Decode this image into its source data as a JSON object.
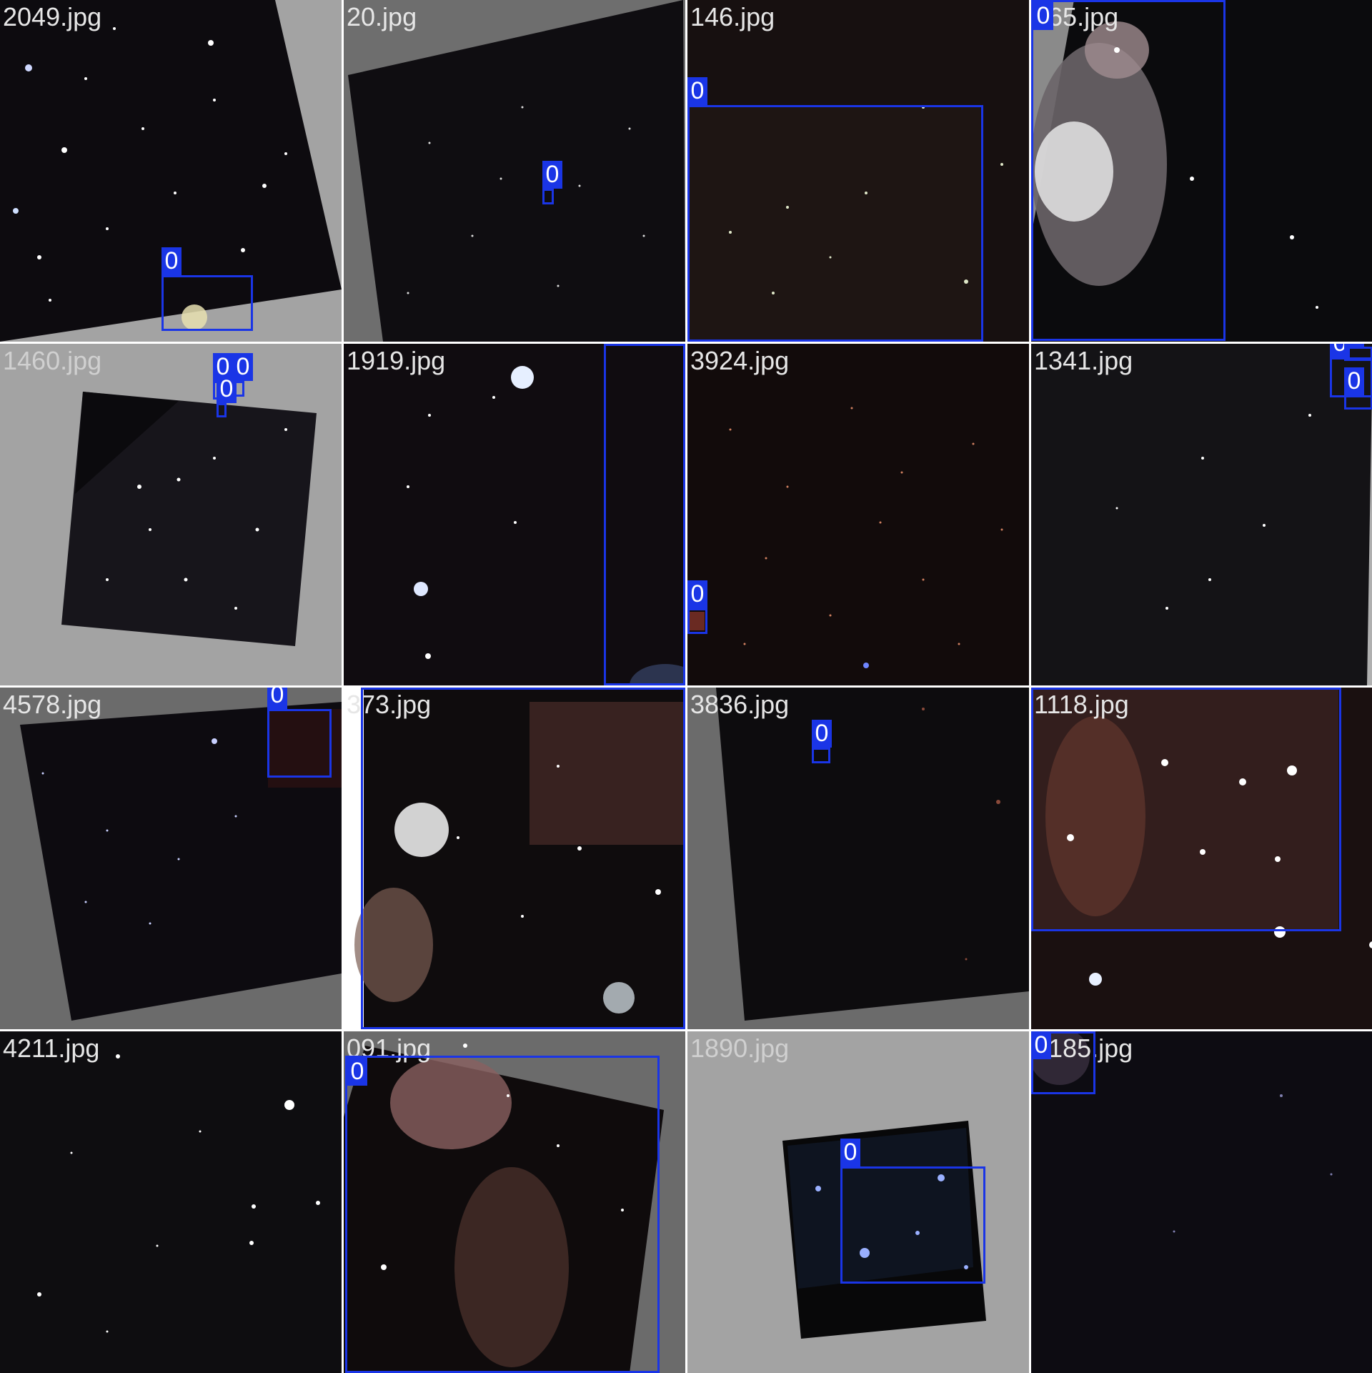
{
  "colors": {
    "box": "#1a35e6",
    "label_text": "#ffffff",
    "gray_pad": "#a0a0a0",
    "dark_pad": "#6e6e6e",
    "sky": "#0c0b0e"
  },
  "tiles": [
    {
      "file": "2049.jpg",
      "labels": [
        "0"
      ]
    },
    {
      "file": "20.jpg",
      "labels": [
        "0"
      ]
    },
    {
      "file": "146.jpg",
      "labels": [
        "0"
      ]
    },
    {
      "file": "565.jpg",
      "labels": [
        "0"
      ]
    },
    {
      "file": "1460.jpg",
      "labels": [
        "0",
        "0",
        "0"
      ]
    },
    {
      "file": "1919.jpg",
      "labels": [
        "0"
      ]
    },
    {
      "file": "3924.jpg",
      "labels": [
        "0"
      ]
    },
    {
      "file": "1341.jpg",
      "labels": [
        "0",
        "0",
        "0"
      ]
    },
    {
      "file": "4578.jpg",
      "labels": [
        "0"
      ]
    },
    {
      "file": "373.jpg",
      "labels": [
        "0"
      ]
    },
    {
      "file": "3836.jpg",
      "labels": [
        "0"
      ]
    },
    {
      "file": "1118.jpg",
      "labels": [
        "0"
      ]
    },
    {
      "file": "4211.jpg",
      "labels": []
    },
    {
      "file": "091.jpg",
      "labels": [
        "0"
      ]
    },
    {
      "file": "1890.jpg",
      "labels": [
        "0"
      ]
    },
    {
      "file": "2185.jpg",
      "labels": [
        "0"
      ]
    }
  ]
}
